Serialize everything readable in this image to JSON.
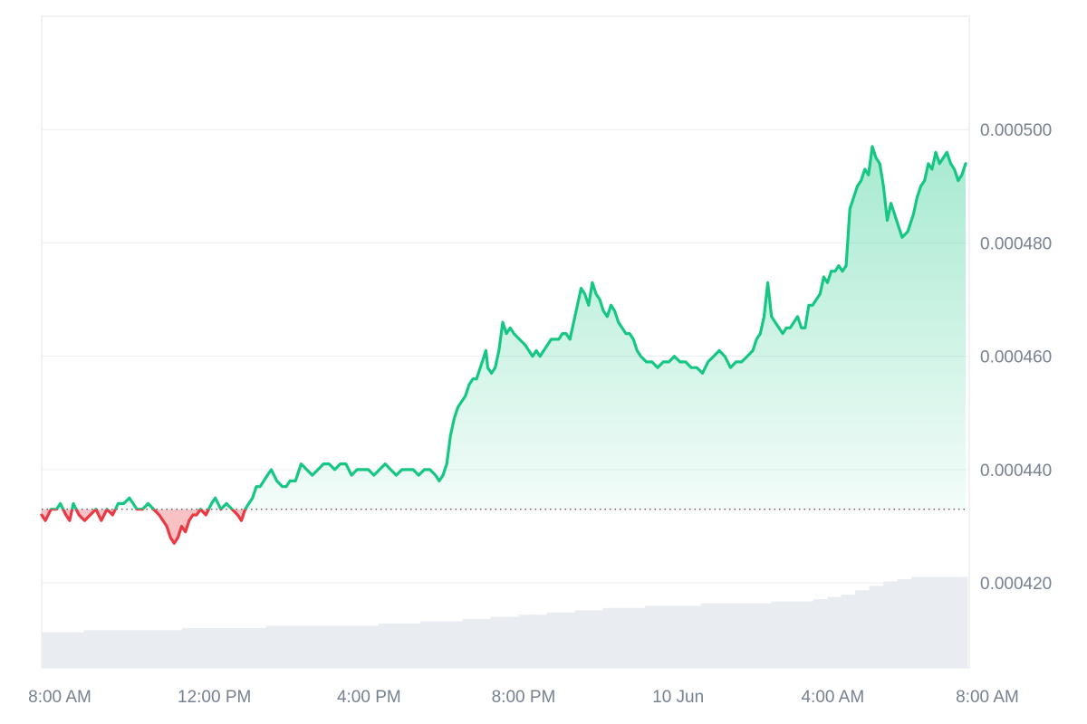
{
  "chart_data": {
    "type": "area",
    "title": "",
    "xlabel": "",
    "ylabel": "",
    "ylim": [
      0.000405,
      0.00052
    ],
    "baseline": 0.000433,
    "x_ticks": [
      "8:00 AM",
      "12:00 PM",
      "4:00 PM",
      "8:00 PM",
      "10 Jun",
      "4:00 AM",
      "8:00 AM"
    ],
    "y_ticks": [
      {
        "value": 0.0005,
        "label": "0.000500"
      },
      {
        "value": 0.00048,
        "label": "0.000480"
      },
      {
        "value": 0.00046,
        "label": "0.000460"
      },
      {
        "value": 0.00044,
        "label": "0.000440"
      },
      {
        "value": 0.00042,
        "label": "0.000420"
      }
    ],
    "x_range": [
      0,
      24
    ],
    "price_series": {
      "name": "",
      "points": [
        [
          0.0,
          0.000432
        ],
        [
          0.1,
          0.000431
        ],
        [
          0.25,
          0.000433
        ],
        [
          0.4,
          0.000433
        ],
        [
          0.5,
          0.000434
        ],
        [
          0.65,
          0.000432
        ],
        [
          0.75,
          0.000431
        ],
        [
          0.85,
          0.000434
        ],
        [
          1.0,
          0.000432
        ],
        [
          1.15,
          0.000431
        ],
        [
          1.3,
          0.000432
        ],
        [
          1.45,
          0.000433
        ],
        [
          1.6,
          0.000431
        ],
        [
          1.75,
          0.000433
        ],
        [
          1.9,
          0.000432
        ],
        [
          2.05,
          0.000434
        ],
        [
          2.2,
          0.000434
        ],
        [
          2.35,
          0.000435
        ],
        [
          2.45,
          0.000434
        ],
        [
          2.55,
          0.000433
        ],
        [
          2.7,
          0.000433
        ],
        [
          2.85,
          0.000434
        ],
        [
          3.0,
          0.000433
        ],
        [
          3.15,
          0.000432
        ],
        [
          3.25,
          0.000431
        ],
        [
          3.35,
          0.00043
        ],
        [
          3.45,
          0.000428
        ],
        [
          3.55,
          0.000427
        ],
        [
          3.65,
          0.000428
        ],
        [
          3.75,
          0.00043
        ],
        [
          3.85,
          0.000429
        ],
        [
          3.95,
          0.000431
        ],
        [
          4.05,
          0.000432
        ],
        [
          4.15,
          0.000432
        ],
        [
          4.25,
          0.000433
        ],
        [
          4.4,
          0.000432
        ],
        [
          4.55,
          0.000434
        ],
        [
          4.65,
          0.000435
        ],
        [
          4.8,
          0.000433
        ],
        [
          4.95,
          0.000434
        ],
        [
          5.1,
          0.000433
        ],
        [
          5.25,
          0.000432
        ],
        [
          5.35,
          0.000431
        ],
        [
          5.45,
          0.000433
        ],
        [
          5.55,
          0.000434
        ],
        [
          5.65,
          0.000435
        ],
        [
          5.75,
          0.000437
        ],
        [
          5.85,
          0.000437
        ],
        [
          5.95,
          0.000438
        ],
        [
          6.05,
          0.000439
        ],
        [
          6.15,
          0.00044
        ],
        [
          6.3,
          0.000438
        ],
        [
          6.45,
          0.000437
        ],
        [
          6.55,
          0.000437
        ],
        [
          6.65,
          0.000438
        ],
        [
          6.8,
          0.000438
        ],
        [
          6.95,
          0.000441
        ],
        [
          7.1,
          0.00044
        ],
        [
          7.25,
          0.000439
        ],
        [
          7.4,
          0.00044
        ],
        [
          7.55,
          0.000441
        ],
        [
          7.7,
          0.000441
        ],
        [
          7.85,
          0.00044
        ],
        [
          8.0,
          0.000441
        ],
        [
          8.15,
          0.000441
        ],
        [
          8.3,
          0.000439
        ],
        [
          8.45,
          0.00044
        ],
        [
          8.6,
          0.00044
        ],
        [
          8.75,
          0.00044
        ],
        [
          8.9,
          0.000439
        ],
        [
          9.05,
          0.00044
        ],
        [
          9.2,
          0.000441
        ],
        [
          9.35,
          0.00044
        ],
        [
          9.5,
          0.000439
        ],
        [
          9.65,
          0.00044
        ],
        [
          9.8,
          0.00044
        ],
        [
          9.95,
          0.00044
        ],
        [
          10.1,
          0.000439
        ],
        [
          10.25,
          0.00044
        ],
        [
          10.4,
          0.00044
        ],
        [
          10.55,
          0.000439
        ],
        [
          10.65,
          0.000438
        ],
        [
          10.75,
          0.000439
        ],
        [
          10.85,
          0.000441
        ],
        [
          10.95,
          0.000446
        ],
        [
          11.05,
          0.000449
        ],
        [
          11.15,
          0.000451
        ],
        [
          11.25,
          0.000452
        ],
        [
          11.35,
          0.000453
        ],
        [
          11.45,
          0.000455
        ],
        [
          11.55,
          0.000456
        ],
        [
          11.65,
          0.000456
        ],
        [
          11.75,
          0.000458
        ],
        [
          11.85,
          0.00046
        ],
        [
          11.9,
          0.000461
        ],
        [
          11.95,
          0.000458
        ],
        [
          12.05,
          0.000457
        ],
        [
          12.15,
          0.000458
        ],
        [
          12.25,
          0.000461
        ],
        [
          12.35,
          0.000466
        ],
        [
          12.45,
          0.000464
        ],
        [
          12.55,
          0.000465
        ],
        [
          12.65,
          0.000464
        ],
        [
          12.8,
          0.000463
        ],
        [
          12.95,
          0.000462
        ],
        [
          13.05,
          0.000461
        ],
        [
          13.15,
          0.00046
        ],
        [
          13.25,
          0.000461
        ],
        [
          13.35,
          0.00046
        ],
        [
          13.45,
          0.000461
        ],
        [
          13.55,
          0.000462
        ],
        [
          13.65,
          0.000463
        ],
        [
          13.75,
          0.000463
        ],
        [
          13.85,
          0.000463
        ],
        [
          13.95,
          0.000464
        ],
        [
          14.05,
          0.000464
        ],
        [
          14.15,
          0.000463
        ],
        [
          14.25,
          0.000466
        ],
        [
          14.35,
          0.000469
        ],
        [
          14.45,
          0.000472
        ],
        [
          14.55,
          0.000471
        ],
        [
          14.65,
          0.000469
        ],
        [
          14.75,
          0.000473
        ],
        [
          14.85,
          0.000471
        ],
        [
          14.95,
          0.00047
        ],
        [
          15.05,
          0.000468
        ],
        [
          15.15,
          0.000467
        ],
        [
          15.25,
          0.000469
        ],
        [
          15.35,
          0.000468
        ],
        [
          15.45,
          0.000466
        ],
        [
          15.55,
          0.000465
        ],
        [
          15.65,
          0.000464
        ],
        [
          15.75,
          0.000464
        ],
        [
          15.85,
          0.000463
        ],
        [
          15.95,
          0.000461
        ],
        [
          16.05,
          0.00046
        ],
        [
          16.2,
          0.000459
        ],
        [
          16.35,
          0.000459
        ],
        [
          16.5,
          0.000458
        ],
        [
          16.65,
          0.000459
        ],
        [
          16.8,
          0.000459
        ],
        [
          16.95,
          0.00046
        ],
        [
          17.1,
          0.000459
        ],
        [
          17.25,
          0.000459
        ],
        [
          17.4,
          0.000458
        ],
        [
          17.55,
          0.000458
        ],
        [
          17.7,
          0.000457
        ],
        [
          17.85,
          0.000459
        ],
        [
          18.0,
          0.00046
        ],
        [
          18.15,
          0.000461
        ],
        [
          18.3,
          0.00046
        ],
        [
          18.45,
          0.000458
        ],
        [
          18.6,
          0.000459
        ],
        [
          18.75,
          0.000459
        ],
        [
          18.9,
          0.00046
        ],
        [
          19.05,
          0.000461
        ],
        [
          19.15,
          0.000463
        ],
        [
          19.25,
          0.000464
        ],
        [
          19.35,
          0.000467
        ],
        [
          19.45,
          0.000473
        ],
        [
          19.55,
          0.000467
        ],
        [
          19.65,
          0.000466
        ],
        [
          19.75,
          0.000465
        ],
        [
          19.85,
          0.000464
        ],
        [
          19.95,
          0.000465
        ],
        [
          20.05,
          0.000465
        ],
        [
          20.15,
          0.000466
        ],
        [
          20.25,
          0.000467
        ],
        [
          20.35,
          0.000465
        ],
        [
          20.45,
          0.000465
        ],
        [
          20.55,
          0.000469
        ],
        [
          20.65,
          0.000469
        ],
        [
          20.75,
          0.00047
        ],
        [
          20.85,
          0.000471
        ],
        [
          20.95,
          0.000474
        ],
        [
          21.05,
          0.000473
        ],
        [
          21.15,
          0.000475
        ],
        [
          21.25,
          0.000475
        ],
        [
          21.35,
          0.000476
        ],
        [
          21.45,
          0.000475
        ],
        [
          21.55,
          0.000476
        ],
        [
          21.65,
          0.000486
        ],
        [
          21.75,
          0.000488
        ],
        [
          21.85,
          0.00049
        ],
        [
          21.95,
          0.000491
        ],
        [
          22.05,
          0.000493
        ],
        [
          22.15,
          0.000492
        ],
        [
          22.25,
          0.000497
        ],
        [
          22.35,
          0.000495
        ],
        [
          22.45,
          0.000494
        ],
        [
          22.5,
          0.000492
        ],
        [
          22.55,
          0.00049
        ],
        [
          22.65,
          0.000484
        ],
        [
          22.75,
          0.000487
        ],
        [
          22.85,
          0.000485
        ],
        [
          22.95,
          0.000483
        ],
        [
          23.05,
          0.000481
        ],
        [
          23.2,
          0.000482
        ],
        [
          23.35,
          0.000485
        ],
        [
          23.45,
          0.000488
        ],
        [
          23.55,
          0.00049
        ],
        [
          23.65,
          0.000491
        ],
        [
          23.75,
          0.000494
        ],
        [
          23.85,
          0.000493
        ],
        [
          23.95,
          0.000496
        ],
        [
          24.05,
          0.000494
        ],
        [
          24.15,
          0.000495
        ],
        [
          24.25,
          0.000496
        ],
        [
          24.35,
          0.000494
        ],
        [
          24.45,
          0.000493
        ],
        [
          24.55,
          0.000491
        ],
        [
          24.65,
          0.000492
        ],
        [
          24.75,
          0.000494
        ]
      ],
      "up_color": "#16c784",
      "down_color": "#ea3943"
    },
    "volume_series": {
      "name": "",
      "values": [
        0.16,
        0.16,
        0.16,
        0.17,
        0.17,
        0.17,
        0.17,
        0.17,
        0.17,
        0.17,
        0.18,
        0.18,
        0.18,
        0.18,
        0.18,
        0.18,
        0.19,
        0.19,
        0.19,
        0.19,
        0.19,
        0.19,
        0.19,
        0.19,
        0.2,
        0.2,
        0.2,
        0.21,
        0.21,
        0.21,
        0.22,
        0.22,
        0.23,
        0.23,
        0.24,
        0.24,
        0.25,
        0.25,
        0.26,
        0.26,
        0.27,
        0.27,
        0.27,
        0.28,
        0.28,
        0.28,
        0.28,
        0.29,
        0.29,
        0.29,
        0.29,
        0.29,
        0.3,
        0.3,
        0.3,
        0.31,
        0.32,
        0.33,
        0.35,
        0.37,
        0.39,
        0.4,
        0.41,
        0.41,
        0.41,
        0.41
      ],
      "color": "#e9edf2"
    },
    "grid": true,
    "baseline_line": "dotted"
  }
}
